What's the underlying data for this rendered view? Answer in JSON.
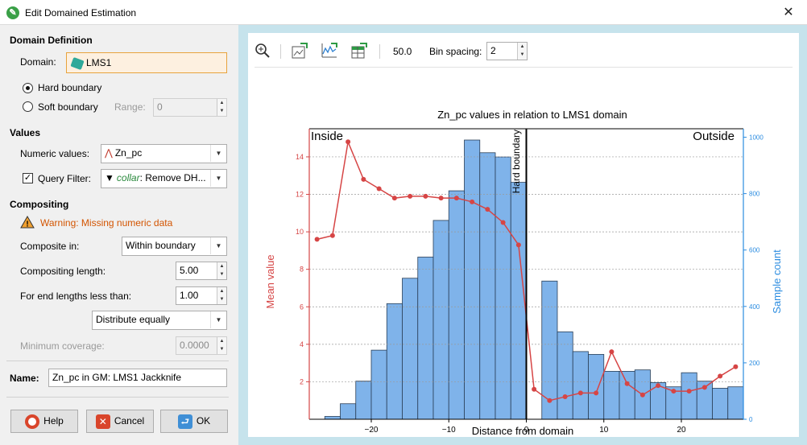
{
  "window": {
    "title": "Edit Domained Estimation",
    "close": "✕"
  },
  "domain_definition": {
    "heading": "Domain Definition",
    "domain_label": "Domain:",
    "domain_value": "LMS1",
    "hard_boundary": "Hard boundary",
    "soft_boundary": "Soft boundary",
    "range_label": "Range:",
    "range_value": "0"
  },
  "values": {
    "heading": "Values",
    "numeric_label": "Numeric values:",
    "numeric_value": "Zn_pc",
    "query_filter_label": "Query Filter:",
    "query_filter_prefix": "collar",
    "query_filter_value": ": Remove DH..."
  },
  "compositing": {
    "heading": "Compositing",
    "warning": "Warning: Missing numeric data",
    "composite_in_label": "Composite in:",
    "composite_in_value": "Within boundary",
    "length_label": "Compositing length:",
    "length_value": "5.00",
    "end_lengths_label": "For end lengths less than:",
    "end_lengths_value": "1.00",
    "distribute_value": "Distribute equally",
    "min_coverage_label": "Minimum coverage:",
    "min_coverage_value": "0.0000"
  },
  "name": {
    "label": "Name:",
    "value": "Zn_pc in GM: LMS1 Jackknife"
  },
  "buttons": {
    "help": "Help",
    "cancel": "Cancel",
    "ok": "OK"
  },
  "toolbar": {
    "value_readout": "50.0",
    "bin_spacing_label": "Bin spacing:",
    "bin_spacing_value": "2"
  },
  "colors": {
    "bars": "#7fb3ea",
    "mean_line": "#d64545",
    "right_axis": "#2b8ce0",
    "accent_border": "#e8a33d"
  },
  "chart_data": {
    "type": "bar",
    "title": "Zn_pc values in relation to LMS1 domain",
    "xlabel": "Distance from domain",
    "ylabel": "Mean value",
    "y2label": "Sample count",
    "xlim": [
      -28,
      28
    ],
    "ylim": [
      0,
      15.5
    ],
    "y2lim": [
      0,
      1030
    ],
    "x_ticks": [
      -20,
      -10,
      0,
      10,
      20
    ],
    "x_tick_labels": [
      "−20",
      "−10",
      "0",
      "10",
      "20"
    ],
    "y_ticks": [
      2,
      4,
      6,
      8,
      10,
      12,
      14
    ],
    "y2_ticks": [
      0,
      200,
      400,
      600,
      800,
      1000
    ],
    "boundary_x": 0,
    "boundary_label": "Hard boundary",
    "inside_label": "Inside",
    "outside_label": "Outside",
    "histogram": {
      "name": "Sample count",
      "bin_width": 2,
      "bins_start": [
        -28,
        -26,
        -24,
        -22,
        -20,
        -18,
        -16,
        -14,
        -12,
        -10,
        -8,
        -6,
        -4,
        -2,
        0,
        2,
        4,
        6,
        8,
        10,
        12,
        14,
        16,
        18,
        20,
        22,
        24,
        26
      ],
      "counts": [
        0,
        10,
        55,
        135,
        245,
        410,
        500,
        575,
        705,
        810,
        990,
        945,
        930,
        840,
        0,
        490,
        310,
        240,
        230,
        170,
        170,
        175,
        130,
        115,
        165,
        135,
        110,
        115
      ]
    },
    "mean_series": {
      "name": "Mean value",
      "x": [
        -27,
        -25,
        -23,
        -21,
        -19,
        -17,
        -15,
        -13,
        -11,
        -9,
        -7,
        -5,
        -3,
        -1,
        1,
        3,
        5,
        7,
        9,
        11,
        13,
        15,
        17,
        19,
        21,
        23,
        25,
        27
      ],
      "y": [
        9.6,
        9.8,
        14.8,
        12.8,
        12.3,
        11.8,
        11.9,
        11.9,
        11.8,
        11.8,
        11.6,
        11.2,
        10.5,
        9.3,
        1.6,
        1.0,
        1.2,
        1.4,
        1.4,
        3.6,
        1.9,
        1.3,
        1.8,
        1.5,
        1.5,
        1.7,
        2.3,
        2.8
      ]
    }
  }
}
